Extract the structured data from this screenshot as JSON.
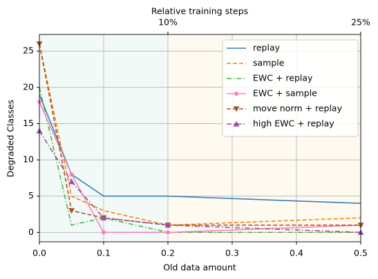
{
  "chart_data": {
    "type": "line",
    "xlabel": "Old data amount",
    "ylabel": "Degraded Classes",
    "x2label": "Relative training steps",
    "x": [
      0,
      0.05,
      0.1,
      0.2,
      0.5
    ],
    "series": [
      {
        "name": "replay",
        "color": "#377eb8",
        "linestyle": "solid",
        "values": [
          19,
          8,
          5,
          5,
          4
        ]
      },
      {
        "name": "sample",
        "color": "#ff7f00",
        "linestyle": "dashed",
        "values": [
          26,
          5,
          3,
          1,
          2
        ]
      },
      {
        "name": "EWC + replay",
        "color": "#4daf4a",
        "linestyle": "dashdot",
        "values": [
          20,
          1,
          2,
          0,
          0
        ]
      },
      {
        "name": "EWC + sample",
        "color": "#f781bf",
        "linestyle": "solid",
        "marker": "circle",
        "values": [
          18,
          8,
          0,
          0,
          1
        ]
      },
      {
        "name": "move norm + replay",
        "color": "#a65628",
        "linestyle": "dashed",
        "marker": "triangle-down",
        "values": [
          26,
          3,
          2,
          1,
          1
        ]
      },
      {
        "name": "high EWC + replay",
        "color": "#984ea3",
        "linestyle": "dashdot",
        "marker": "triangle-up",
        "values": [
          14,
          7,
          2,
          1,
          0
        ]
      }
    ],
    "xlim": [
      0,
      0.5
    ],
    "xticks": [
      {
        "value": 0,
        "label": "0.0"
      },
      0.1,
      0.2,
      0.3,
      0.4,
      0.5
    ],
    "ylim": [
      -1.3,
      27.3
    ],
    "yticks": [
      0,
      5,
      10,
      15,
      20,
      25
    ],
    "x2lim": [
      0,
      25
    ],
    "x2ticks": [
      {
        "value": 10,
        "label": "10%"
      },
      {
        "value": 25,
        "label": "25%"
      }
    ],
    "shaded_regions": [
      {
        "xrange": [
          0,
          0.2
        ],
        "color": "#f2faf7"
      },
      {
        "xrange": [
          0.2,
          0.5
        ],
        "color": "#fffaf0"
      }
    ],
    "grid": true,
    "legend": "upper right"
  }
}
